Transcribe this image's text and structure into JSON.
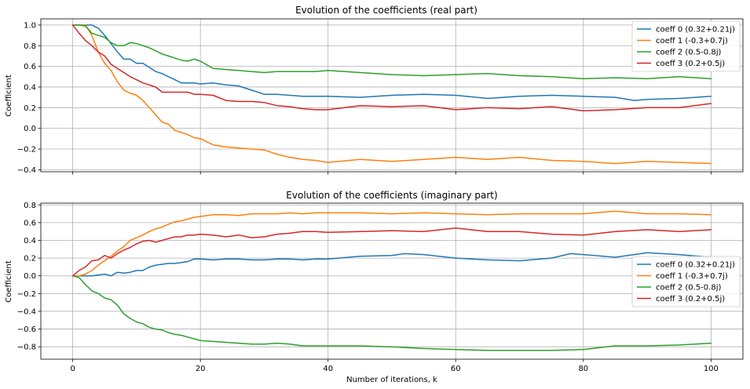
{
  "chart_data": [
    {
      "type": "line",
      "title": "Evolution of the coefficients (real part)",
      "xlabel": "",
      "ylabel": "Coefficient",
      "xlim": [
        -5,
        105
      ],
      "ylim": [
        -0.42,
        1.06
      ],
      "xticks": [
        0,
        20,
        40,
        60,
        80,
        100
      ],
      "yticks": [
        -0.4,
        -0.2,
        0.0,
        0.2,
        0.4,
        0.6,
        0.8,
        1.0
      ],
      "ytick_labels": [
        "−0.4",
        "−0.2",
        "0.0",
        "0.2",
        "0.4",
        "0.6",
        "0.8",
        "1.0"
      ],
      "grid": true,
      "legend": "top-right",
      "series": [
        {
          "name": "coeff 0 (0.32+0.21j)",
          "color": "#1f77b4",
          "x": [
            0,
            1,
            2,
            3,
            4,
            5,
            6,
            7,
            8,
            9,
            10,
            11,
            12,
            13,
            14,
            15,
            16,
            17,
            18,
            19,
            20,
            22,
            24,
            26,
            28,
            30,
            32,
            34,
            36,
            38,
            40,
            45,
            50,
            55,
            60,
            65,
            70,
            75,
            80,
            85,
            88,
            90,
            95,
            100
          ],
          "values": [
            1.0,
            1.0,
            1.0,
            1.0,
            0.97,
            0.9,
            0.82,
            0.74,
            0.67,
            0.67,
            0.63,
            0.63,
            0.59,
            0.55,
            0.53,
            0.5,
            0.47,
            0.44,
            0.44,
            0.44,
            0.43,
            0.44,
            0.42,
            0.41,
            0.37,
            0.33,
            0.33,
            0.32,
            0.31,
            0.31,
            0.31,
            0.3,
            0.32,
            0.33,
            0.32,
            0.29,
            0.31,
            0.32,
            0.31,
            0.3,
            0.27,
            0.28,
            0.29,
            0.31
          ]
        },
        {
          "name": "coeff 1 (-0.3+0.7j)",
          "color": "#ff7f0e",
          "x": [
            0,
            1,
            2,
            3,
            4,
            5,
            6,
            7,
            8,
            9,
            10,
            11,
            12,
            13,
            14,
            15,
            16,
            17,
            18,
            19,
            20,
            22,
            24,
            26,
            28,
            30,
            32,
            34,
            36,
            38,
            40,
            45,
            50,
            55,
            60,
            65,
            70,
            75,
            80,
            85,
            90,
            95,
            100
          ],
          "values": [
            1.0,
            1.0,
            1.0,
            0.9,
            0.74,
            0.63,
            0.56,
            0.45,
            0.37,
            0.34,
            0.32,
            0.27,
            0.2,
            0.13,
            0.06,
            0.04,
            -0.02,
            -0.04,
            -0.06,
            -0.09,
            -0.1,
            -0.16,
            -0.18,
            -0.19,
            -0.2,
            -0.21,
            -0.25,
            -0.28,
            -0.3,
            -0.31,
            -0.33,
            -0.3,
            -0.32,
            -0.3,
            -0.28,
            -0.3,
            -0.28,
            -0.31,
            -0.32,
            -0.34,
            -0.32,
            -0.33,
            -0.34
          ]
        },
        {
          "name": "coeff 2 (0.5-0.8j)",
          "color": "#2ca02c",
          "x": [
            0,
            1,
            2,
            3,
            4,
            5,
            6,
            7,
            8,
            9,
            10,
            11,
            12,
            13,
            14,
            15,
            16,
            17,
            18,
            19,
            20,
            22,
            24,
            26,
            28,
            30,
            32,
            34,
            36,
            38,
            40,
            45,
            50,
            55,
            60,
            65,
            70,
            75,
            80,
            85,
            90,
            95,
            100
          ],
          "values": [
            1.0,
            1.0,
            0.99,
            0.92,
            0.9,
            0.88,
            0.83,
            0.8,
            0.8,
            0.83,
            0.82,
            0.8,
            0.78,
            0.75,
            0.72,
            0.7,
            0.68,
            0.66,
            0.65,
            0.67,
            0.65,
            0.58,
            0.57,
            0.56,
            0.55,
            0.54,
            0.55,
            0.55,
            0.55,
            0.55,
            0.56,
            0.54,
            0.52,
            0.51,
            0.52,
            0.53,
            0.51,
            0.5,
            0.48,
            0.49,
            0.48,
            0.5,
            0.48
          ]
        },
        {
          "name": "coeff 3 (0.2+0.5j)",
          "color": "#d62728",
          "x": [
            0,
            1,
            2,
            3,
            4,
            5,
            6,
            7,
            8,
            9,
            10,
            11,
            12,
            13,
            14,
            15,
            16,
            17,
            18,
            19,
            20,
            22,
            24,
            26,
            28,
            30,
            32,
            34,
            36,
            38,
            40,
            45,
            50,
            55,
            60,
            65,
            70,
            75,
            80,
            85,
            90,
            95,
            100
          ],
          "values": [
            1.0,
            0.92,
            0.85,
            0.8,
            0.74,
            0.7,
            0.62,
            0.58,
            0.54,
            0.5,
            0.47,
            0.44,
            0.42,
            0.4,
            0.35,
            0.35,
            0.35,
            0.35,
            0.35,
            0.33,
            0.33,
            0.32,
            0.27,
            0.26,
            0.26,
            0.25,
            0.22,
            0.21,
            0.19,
            0.18,
            0.18,
            0.22,
            0.21,
            0.22,
            0.18,
            0.2,
            0.19,
            0.21,
            0.17,
            0.18,
            0.2,
            0.2,
            0.24
          ]
        }
      ]
    },
    {
      "type": "line",
      "title": "Evolution of the coefficients (imaginary part)",
      "xlabel": "Number of iterations, k",
      "ylabel": "Coefficient",
      "xlim": [
        -5,
        105
      ],
      "ylim": [
        -0.94,
        0.82
      ],
      "xticks": [
        0,
        20,
        40,
        60,
        80,
        100
      ],
      "xtick_labels": [
        "0",
        "20",
        "40",
        "60",
        "80",
        "100"
      ],
      "yticks": [
        -0.8,
        -0.6,
        -0.4,
        -0.2,
        0.0,
        0.2,
        0.4,
        0.6,
        0.8
      ],
      "ytick_labels": [
        "−0.8",
        "−0.6",
        "−0.4",
        "−0.2",
        "0.0",
        "0.2",
        "0.4",
        "0.6",
        "0.8"
      ],
      "grid": true,
      "legend": "center-right",
      "series": [
        {
          "name": "coeff 0 (0.32+0.21j)",
          "color": "#1f77b4",
          "x": [
            0,
            1,
            2,
            3,
            4,
            5,
            6,
            7,
            8,
            9,
            10,
            11,
            12,
            13,
            14,
            15,
            16,
            17,
            18,
            19,
            20,
            22,
            24,
            26,
            28,
            30,
            32,
            34,
            36,
            38,
            40,
            45,
            50,
            52,
            55,
            60,
            65,
            70,
            75,
            78,
            80,
            85,
            90,
            95,
            100
          ],
          "values": [
            0.0,
            0.0,
            0.0,
            0.0,
            0.01,
            0.02,
            0.0,
            0.04,
            0.03,
            0.04,
            0.06,
            0.06,
            0.1,
            0.12,
            0.13,
            0.14,
            0.14,
            0.15,
            0.16,
            0.19,
            0.19,
            0.18,
            0.19,
            0.19,
            0.18,
            0.18,
            0.19,
            0.19,
            0.18,
            0.19,
            0.19,
            0.22,
            0.23,
            0.25,
            0.24,
            0.2,
            0.18,
            0.17,
            0.2,
            0.25,
            0.24,
            0.21,
            0.26,
            0.24,
            0.21
          ]
        },
        {
          "name": "coeff 1 (-0.3+0.7j)",
          "color": "#ff7f0e",
          "x": [
            0,
            1,
            2,
            3,
            4,
            5,
            6,
            7,
            8,
            9,
            10,
            11,
            12,
            13,
            14,
            15,
            16,
            17,
            18,
            19,
            20,
            22,
            24,
            26,
            28,
            30,
            32,
            34,
            36,
            38,
            40,
            45,
            50,
            55,
            60,
            65,
            70,
            75,
            80,
            85,
            90,
            95,
            100
          ],
          "values": [
            0.0,
            0.0,
            0.02,
            0.06,
            0.12,
            0.17,
            0.22,
            0.28,
            0.33,
            0.4,
            0.43,
            0.46,
            0.5,
            0.53,
            0.55,
            0.58,
            0.61,
            0.62,
            0.64,
            0.66,
            0.67,
            0.69,
            0.69,
            0.68,
            0.7,
            0.7,
            0.7,
            0.71,
            0.7,
            0.71,
            0.71,
            0.71,
            0.7,
            0.71,
            0.7,
            0.69,
            0.7,
            0.7,
            0.7,
            0.73,
            0.7,
            0.7,
            0.69
          ]
        },
        {
          "name": "coeff 2 (0.5-0.8j)",
          "color": "#2ca02c",
          "x": [
            0,
            1,
            2,
            3,
            4,
            5,
            6,
            7,
            8,
            9,
            10,
            11,
            12,
            13,
            14,
            15,
            16,
            17,
            18,
            19,
            20,
            22,
            24,
            26,
            28,
            30,
            32,
            34,
            36,
            38,
            40,
            45,
            50,
            55,
            60,
            65,
            70,
            75,
            80,
            85,
            90,
            95,
            100
          ],
          "values": [
            0.0,
            -0.02,
            -0.1,
            -0.17,
            -0.2,
            -0.25,
            -0.27,
            -0.33,
            -0.43,
            -0.48,
            -0.52,
            -0.54,
            -0.58,
            -0.6,
            -0.61,
            -0.64,
            -0.66,
            -0.67,
            -0.69,
            -0.71,
            -0.73,
            -0.74,
            -0.75,
            -0.76,
            -0.77,
            -0.77,
            -0.76,
            -0.77,
            -0.79,
            -0.79,
            -0.79,
            -0.79,
            -0.8,
            -0.82,
            -0.83,
            -0.84,
            -0.84,
            -0.84,
            -0.83,
            -0.79,
            -0.79,
            -0.78,
            -0.76
          ]
        },
        {
          "name": "coeff 3 (0.2+0.5j)",
          "color": "#d62728",
          "x": [
            0,
            1,
            2,
            3,
            4,
            5,
            6,
            7,
            8,
            9,
            10,
            11,
            12,
            13,
            14,
            15,
            16,
            17,
            18,
            19,
            20,
            22,
            24,
            26,
            28,
            30,
            32,
            34,
            36,
            38,
            40,
            45,
            50,
            55,
            60,
            65,
            70,
            75,
            80,
            85,
            90,
            95,
            100
          ],
          "values": [
            0.0,
            0.06,
            0.1,
            0.17,
            0.18,
            0.23,
            0.2,
            0.25,
            0.29,
            0.32,
            0.36,
            0.39,
            0.4,
            0.38,
            0.4,
            0.42,
            0.44,
            0.44,
            0.46,
            0.46,
            0.47,
            0.46,
            0.44,
            0.46,
            0.43,
            0.44,
            0.47,
            0.48,
            0.5,
            0.5,
            0.49,
            0.5,
            0.51,
            0.5,
            0.54,
            0.5,
            0.5,
            0.47,
            0.46,
            0.5,
            0.52,
            0.5,
            0.52
          ]
        }
      ]
    }
  ]
}
